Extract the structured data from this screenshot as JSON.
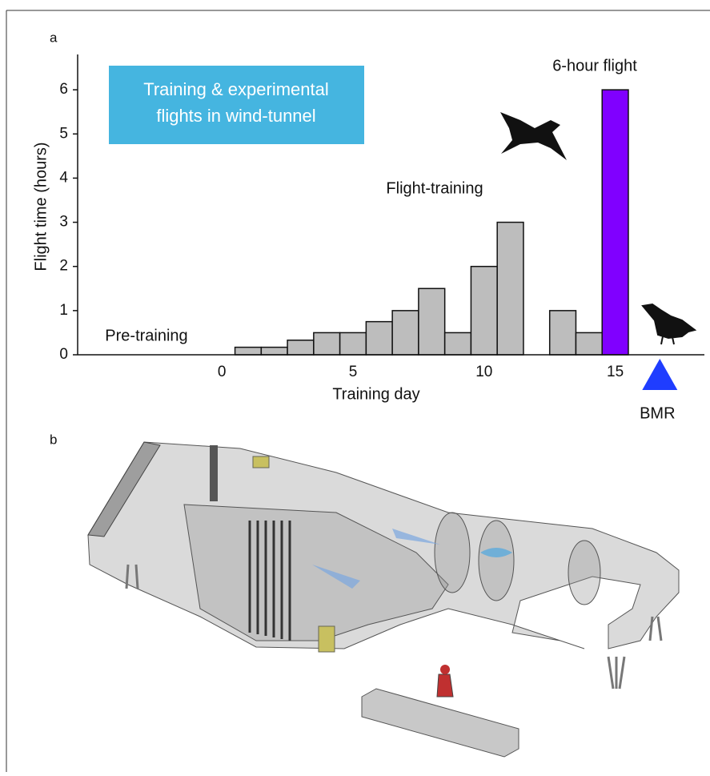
{
  "chart_data": {
    "type": "bar",
    "panel_labels": [
      "a",
      "b"
    ],
    "info_box": [
      "Training & experimental",
      "flights in wind-tunnel"
    ],
    "annotations": [
      "6-hour flight",
      "Flight-training",
      "Pre-training"
    ],
    "x_label": "Training day",
    "y_label": "Flight time (hours)",
    "x": [
      1,
      2,
      3,
      4,
      5,
      6,
      7,
      8,
      9,
      10,
      11,
      13,
      14,
      15
    ],
    "values": [
      0.17,
      0.17,
      0.33,
      0.5,
      0.5,
      0.75,
      1,
      1.5,
      0.5,
      2,
      3,
      1,
      0.5,
      6
    ],
    "colors": [
      "#bdbdbd",
      "#bdbdbd",
      "#bdbdbd",
      "#bdbdbd",
      "#bdbdbd",
      "#bdbdbd",
      "#bdbdbd",
      "#bdbdbd",
      "#bdbdbd",
      "#bdbdbd",
      "#bdbdbd",
      "#bdbdbd",
      "#bdbdbd",
      "#8000ff"
    ],
    "bmr": {
      "x": 16.7,
      "label": "BMR",
      "color": "#1f3dff"
    },
    "xlim": [
      -5.5,
      18.4
    ],
    "xticks": [
      0,
      5,
      10,
      15
    ],
    "ylim": [
      0,
      6.8
    ],
    "yticks": [
      0,
      1,
      2,
      3,
      4,
      5,
      6
    ]
  }
}
